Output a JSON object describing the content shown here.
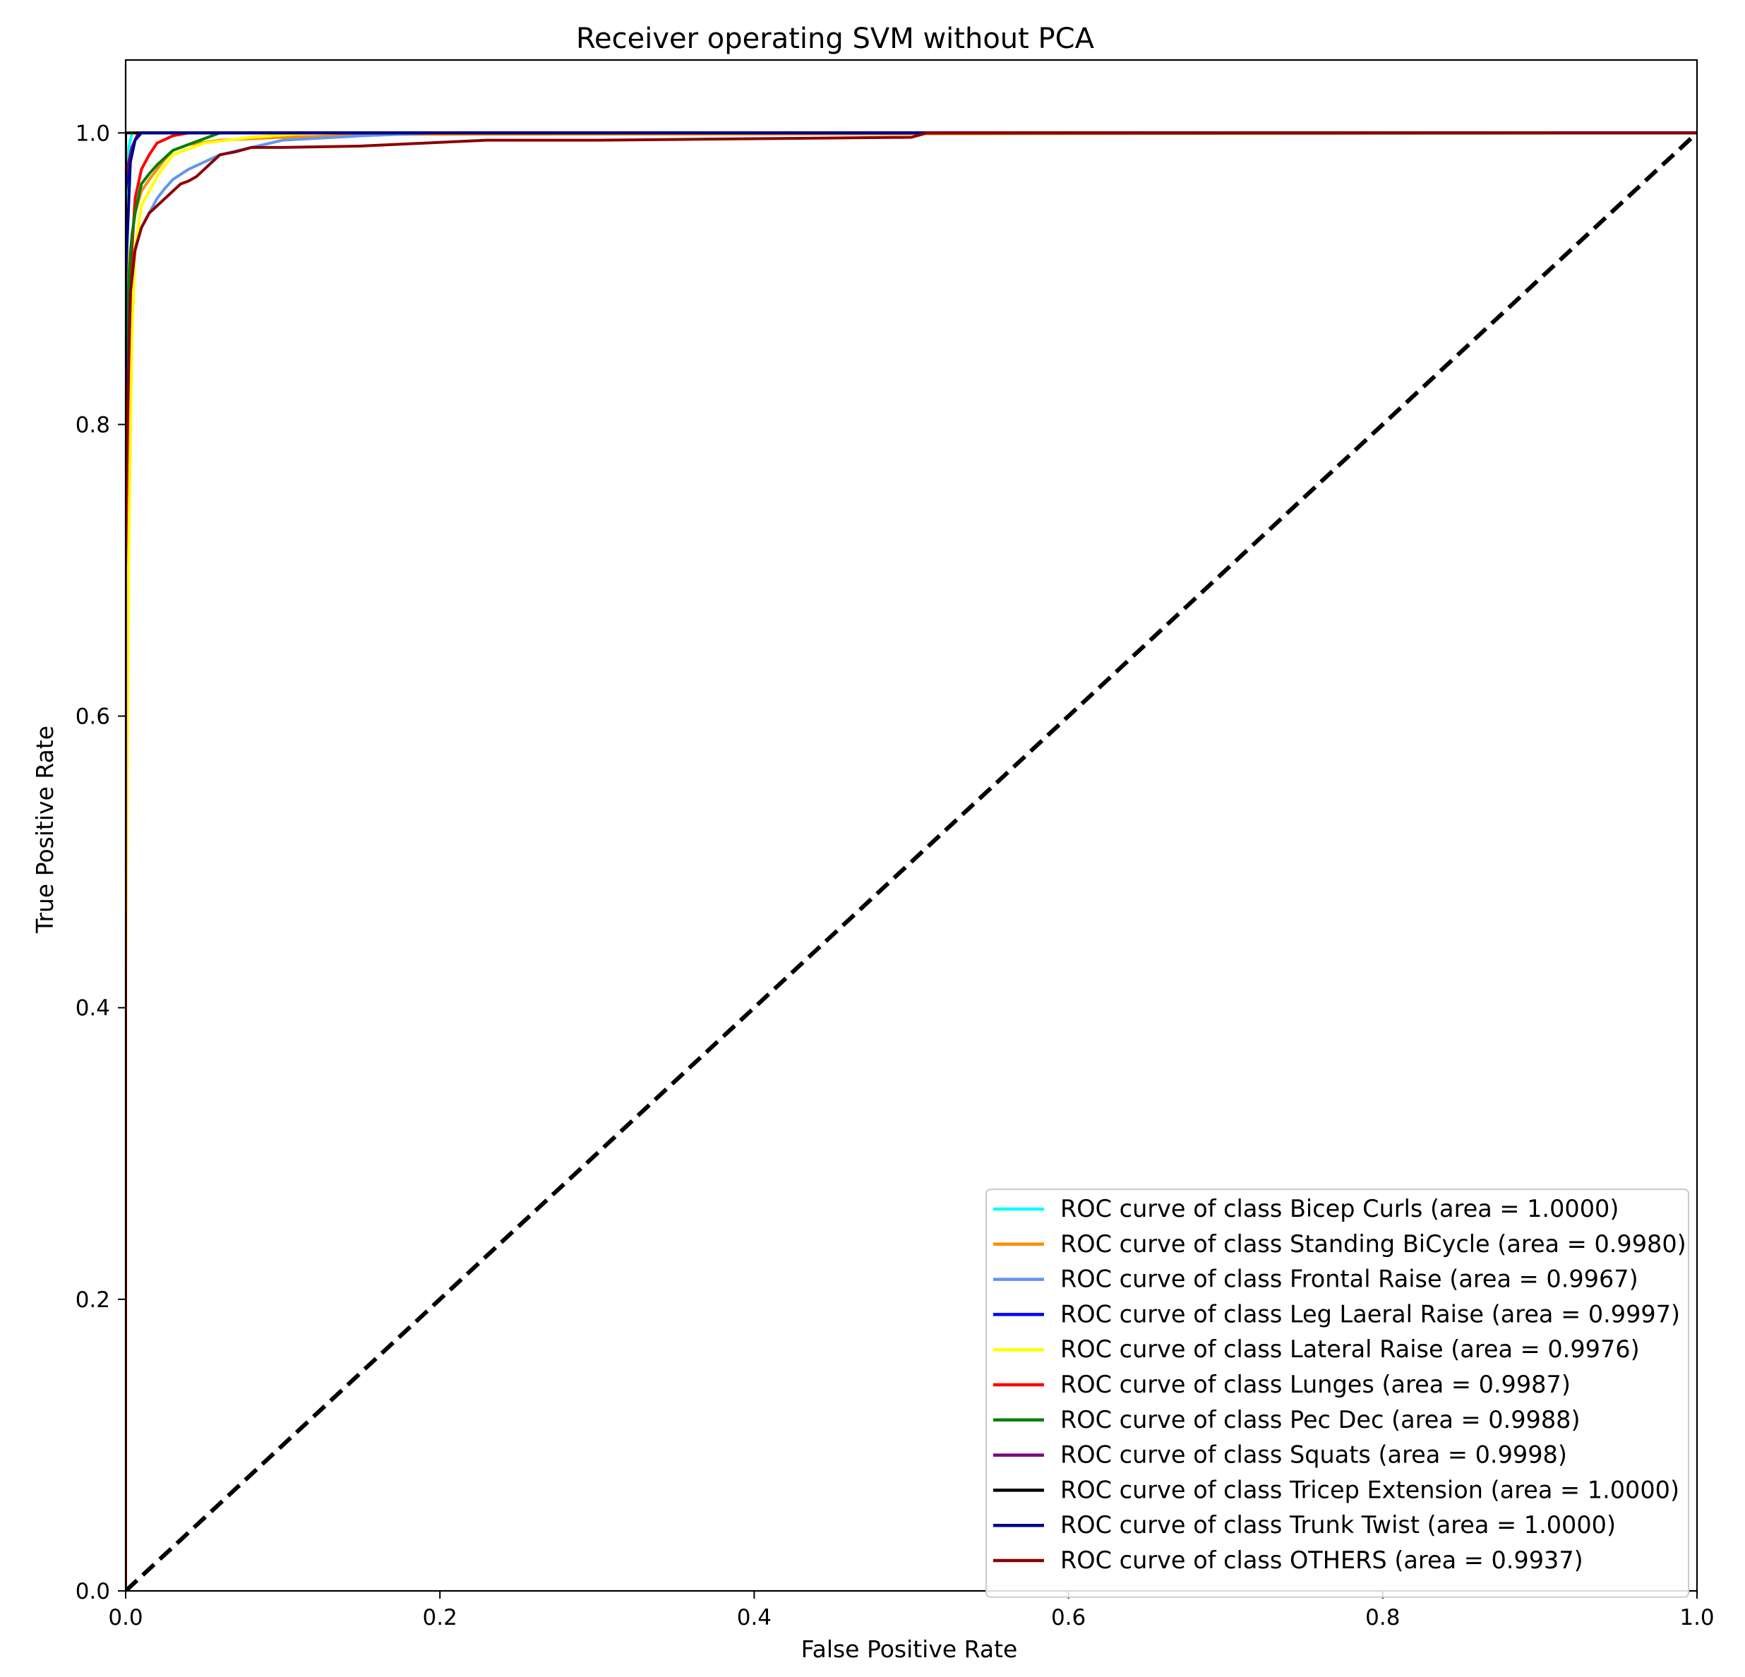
{
  "chart_data": {
    "type": "line",
    "title": "Receiver operating SVM without PCA",
    "xlabel": "False Positive Rate",
    "ylabel": "True Positive Rate",
    "xlim": [
      0.0,
      1.0
    ],
    "ylim": [
      0.0,
      1.05
    ],
    "xticks": [
      "0.0",
      "0.2",
      "0.4",
      "0.6",
      "0.8",
      "1.0"
    ],
    "yticks": [
      "0.0",
      "0.2",
      "0.4",
      "0.6",
      "0.8",
      "1.0"
    ],
    "xtick_values": [
      0.0,
      0.2,
      0.4,
      0.6,
      0.8,
      1.0
    ],
    "ytick_values": [
      0.0,
      0.2,
      0.4,
      0.6,
      0.8,
      1.0
    ],
    "grid": false,
    "legend_position": "lower-right",
    "diagonal": {
      "x": [
        0,
        1
      ],
      "y": [
        0,
        1
      ],
      "color": "#000000",
      "style": "dashed"
    },
    "series": [
      {
        "name": "ROC curve of class Bicep Curls (area = 1.0000)",
        "color": "#00ffff",
        "x": [
          0,
          0,
          0.002,
          0.004,
          1
        ],
        "y": [
          0,
          0.95,
          0.99,
          1.0,
          1.0
        ]
      },
      {
        "name": "ROC curve of class Standing BiCycle (area = 0.9980)",
        "color": "#ff8c00",
        "x": [
          0,
          0,
          0.003,
          0.006,
          0.01,
          0.015,
          0.02,
          0.025,
          0.03,
          0.04,
          0.06,
          0.1,
          0.17,
          1
        ],
        "y": [
          0,
          0.88,
          0.92,
          0.945,
          0.96,
          0.968,
          0.975,
          0.982,
          0.988,
          0.992,
          0.995,
          0.997,
          0.999,
          1.0
        ]
      },
      {
        "name": "ROC curve of class Frontal Raise (area = 0.9967)",
        "color": "#6495ed",
        "x": [
          0,
          0,
          0.005,
          0.01,
          0.015,
          0.02,
          0.025,
          0.03,
          0.04,
          0.05,
          0.06,
          0.08,
          0.1,
          0.15,
          0.2,
          1
        ],
        "y": [
          0,
          0.88,
          0.915,
          0.935,
          0.945,
          0.955,
          0.962,
          0.968,
          0.975,
          0.98,
          0.985,
          0.99,
          0.995,
          0.998,
          1.0,
          1.0
        ]
      },
      {
        "name": "ROC curve of class Leg Laeral Raise (area = 0.9997)",
        "color": "#0000ff",
        "x": [
          0,
          0,
          0.002,
          0.004,
          0.006,
          0.008,
          0.01,
          1
        ],
        "y": [
          0,
          0.96,
          0.98,
          0.99,
          0.995,
          0.998,
          1.0,
          1.0
        ]
      },
      {
        "name": "ROC curve of class Lateral Raise (area = 0.9976)",
        "color": "#ffff00",
        "x": [
          0,
          0,
          0.002,
          0.004,
          0.006,
          0.01,
          0.02,
          0.03,
          0.05,
          0.08,
          0.12,
          1
        ],
        "y": [
          0,
          0.42,
          0.72,
          0.86,
          0.92,
          0.95,
          0.97,
          0.985,
          0.993,
          0.997,
          1.0,
          1.0
        ]
      },
      {
        "name": "ROC curve of class Lunges (area = 0.9987)",
        "color": "#ff0000",
        "x": [
          0,
          0,
          0.002,
          0.004,
          0.006,
          0.01,
          0.015,
          0.02,
          0.03,
          0.04,
          1
        ],
        "y": [
          0,
          0.7,
          0.85,
          0.92,
          0.955,
          0.975,
          0.985,
          0.993,
          0.998,
          1.0,
          1.0
        ]
      },
      {
        "name": "ROC curve of class Pec Dec (area = 0.9988)",
        "color": "#008000",
        "x": [
          0,
          0,
          0.002,
          0.004,
          0.006,
          0.008,
          0.01,
          0.015,
          0.02,
          0.025,
          0.03,
          0.04,
          0.05,
          0.06,
          1
        ],
        "y": [
          0,
          0.82,
          0.9,
          0.93,
          0.945,
          0.955,
          0.965,
          0.972,
          0.978,
          0.983,
          0.988,
          0.992,
          0.996,
          1.0,
          1.0
        ]
      },
      {
        "name": "ROC curve of class Squats (area = 0.9998)",
        "color": "#800080",
        "x": [
          0,
          0,
          0.002,
          0.004,
          0.006,
          0.008,
          1
        ],
        "y": [
          0,
          0.97,
          0.98,
          0.99,
          0.995,
          1.0,
          1.0
        ]
      },
      {
        "name": "ROC curve of class Tricep Extension (area = 1.0000)",
        "color": "#000000",
        "x": [
          0,
          0,
          1
        ],
        "y": [
          0,
          1.0,
          1.0
        ]
      },
      {
        "name": "ROC curve of class Trunk Twist (area = 1.0000)",
        "color": "#00008b",
        "x": [
          0,
          0,
          0.003,
          0.006,
          0.01,
          0.5,
          0.51,
          1
        ],
        "y": [
          0,
          0.9,
          0.98,
          0.995,
          1.0,
          1.0,
          1.0,
          1.0
        ]
      },
      {
        "name": "ROC curve of class OTHERS (area = 0.9937)",
        "color": "#8b0000",
        "x": [
          0,
          0,
          0.003,
          0.006,
          0.01,
          0.015,
          0.02,
          0.025,
          0.03,
          0.035,
          0.04,
          0.045,
          0.05,
          0.055,
          0.06,
          0.07,
          0.08,
          0.1,
          0.15,
          0.23,
          0.3,
          0.5,
          0.51,
          1
        ],
        "y": [
          0,
          0.75,
          0.89,
          0.92,
          0.935,
          0.945,
          0.95,
          0.955,
          0.96,
          0.965,
          0.967,
          0.97,
          0.975,
          0.98,
          0.985,
          0.987,
          0.99,
          0.99,
          0.991,
          0.995,
          0.995,
          0.997,
          1.0,
          1.0
        ]
      }
    ]
  }
}
